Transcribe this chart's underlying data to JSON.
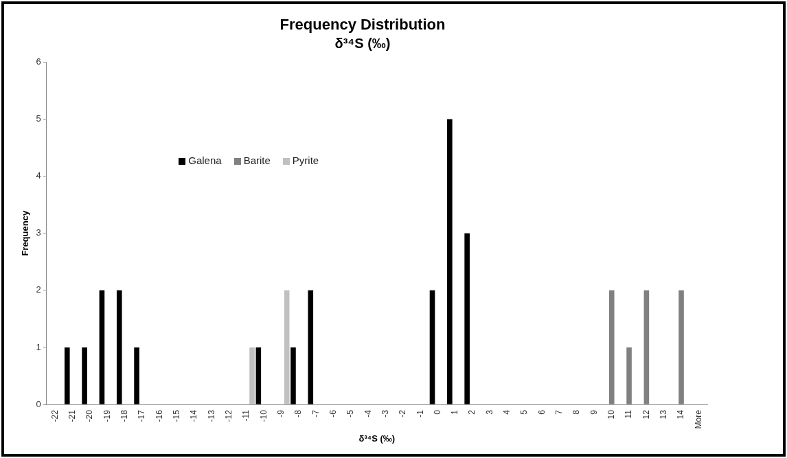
{
  "chart_data": {
    "type": "bar",
    "title": "Frequency Distribution",
    "subtitle": "δ³⁴S (‰)",
    "xlabel": "δ³⁴S (‰)",
    "ylabel": "Frequency",
    "categories": [
      "-22",
      "-21",
      "-20",
      "-19",
      "-18",
      "-17",
      "-16",
      "-15",
      "-14",
      "-13",
      "-12",
      "-11",
      "-10",
      "-9",
      "-8",
      "-7",
      "-6",
      "-5",
      "-4",
      "-3",
      "-2",
      "-1",
      "0",
      "1",
      "2",
      "3",
      "4",
      "5",
      "6",
      "7",
      "8",
      "9",
      "10",
      "11",
      "12",
      "13",
      "14",
      "More"
    ],
    "series": [
      {
        "name": "Galena",
        "color": "#000000",
        "values": [
          0,
          1,
          1,
          2,
          2,
          1,
          0,
          0,
          0,
          0,
          0,
          0,
          1,
          0,
          1,
          2,
          0,
          0,
          0,
          0,
          0,
          0,
          2,
          5,
          3,
          0,
          0,
          0,
          0,
          0,
          0,
          0,
          0,
          0,
          0,
          0,
          0,
          0
        ]
      },
      {
        "name": "Barite",
        "color": "#808080",
        "values": [
          0,
          0,
          0,
          0,
          0,
          0,
          0,
          0,
          0,
          0,
          0,
          0,
          0,
          0,
          0,
          0,
          0,
          0,
          0,
          0,
          0,
          0,
          0,
          0,
          0,
          0,
          0,
          0,
          0,
          0,
          0,
          0,
          2,
          1,
          2,
          0,
          2,
          0
        ]
      },
      {
        "name": "Pyrite",
        "color": "#c0c0c0",
        "values": [
          0,
          0,
          0,
          0,
          0,
          0,
          0,
          0,
          0,
          0,
          0,
          1,
          0,
          2,
          0,
          0,
          0,
          0,
          0,
          0,
          0,
          0,
          0,
          0,
          0,
          0,
          0,
          0,
          0,
          0,
          0,
          0,
          0,
          0,
          0,
          0,
          0,
          0
        ]
      }
    ],
    "ylim": [
      0,
      6
    ],
    "yticks": [
      0,
      1,
      2,
      3,
      4,
      5,
      6
    ],
    "grid": false,
    "legend": "left"
  }
}
